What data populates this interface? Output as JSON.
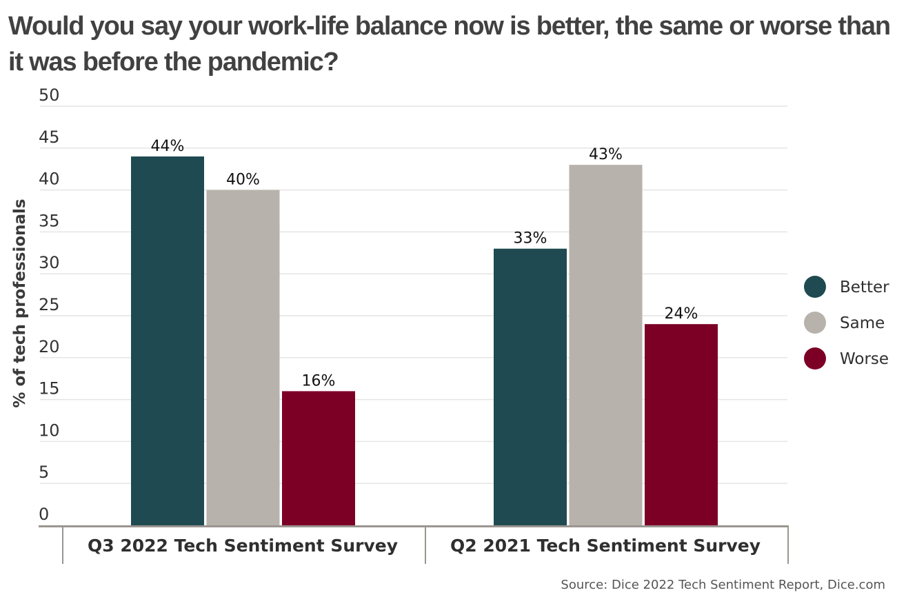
{
  "chart_data": {
    "type": "bar",
    "title": "Would you say your work-life balance now is better, the same or worse than it was before the pandemic?",
    "ylabel": "% of tech professionals",
    "xlabel": "",
    "ylim": [
      0,
      50
    ],
    "yticks": [
      "0",
      "5",
      "10",
      "15",
      "20",
      "25",
      "30",
      "35",
      "40",
      "45",
      "50"
    ],
    "ytick_values": [
      0,
      5,
      10,
      15,
      20,
      25,
      30,
      35,
      40,
      45,
      50
    ],
    "categories": [
      "Q3 2022 Tech Sentiment Survey",
      "Q2 2021 Tech Sentiment Survey"
    ],
    "series": [
      {
        "name": "Better",
        "values": [
          44,
          33
        ],
        "labels": [
          "44%",
          "33%"
        ],
        "color": "#1f4a51"
      },
      {
        "name": "Same",
        "values": [
          40,
          43
        ],
        "labels": [
          "40%",
          "43%"
        ],
        "color": "#b7b2ac"
      },
      {
        "name": "Worse",
        "values": [
          16,
          24
        ],
        "labels": [
          "16%",
          "24%"
        ],
        "color": "#7c0026"
      }
    ],
    "grid": true,
    "legend_position": "right",
    "source": "Source: Dice 2022 Tech Sentiment Report, Dice.com"
  }
}
